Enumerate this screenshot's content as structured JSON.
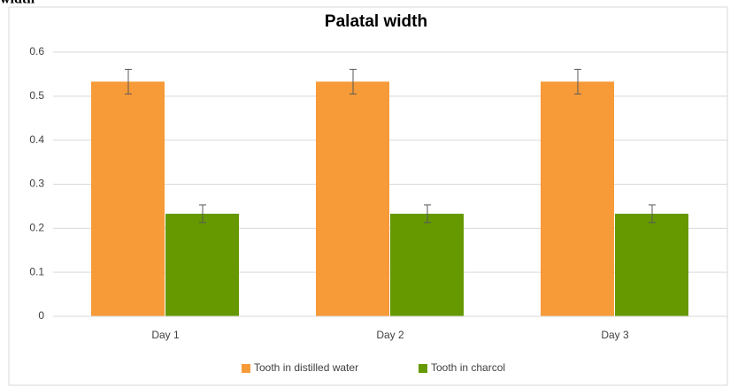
{
  "header_text": "width",
  "chart_data": {
    "type": "bar",
    "title": "Palatal width",
    "categories": [
      "Day 1",
      "Day 2",
      "Day 3"
    ],
    "series": [
      {
        "name": "Tooth in distilled water",
        "color": "#f79a38",
        "values": [
          0.533,
          0.533,
          0.533
        ],
        "errors": [
          0.028,
          0.028,
          0.028
        ]
      },
      {
        "name": "Tooth in charcol",
        "color": "#669900",
        "values": [
          0.233,
          0.233,
          0.233
        ],
        "errors": [
          0.02,
          0.02,
          0.02
        ]
      }
    ],
    "ylim": [
      0,
      0.6
    ],
    "yticks": [
      0,
      0.1,
      0.2,
      0.3,
      0.4,
      0.5,
      0.6
    ],
    "grid": true,
    "legend": "bottom"
  }
}
